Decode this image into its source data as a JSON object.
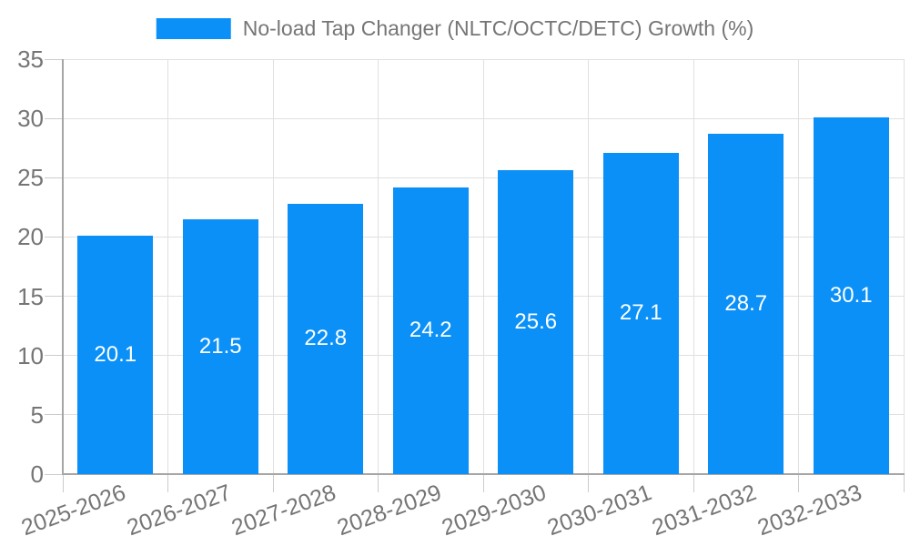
{
  "chart_data": {
    "type": "bar",
    "title": "",
    "legend": "No-load Tap Changer (NLTC/OCTC/DETC) Growth (%)",
    "legend_position": "top-center",
    "categories": [
      "2025-2026",
      "2026-2027",
      "2027-2028",
      "2028-2029",
      "2029-2030",
      "2030-2031",
      "2031-2032",
      "2032-2033"
    ],
    "values": [
      20.1,
      21.5,
      22.8,
      24.2,
      25.6,
      27.1,
      28.7,
      30.1
    ],
    "value_labels": [
      "20.1",
      "21.5",
      "22.8",
      "24.2",
      "25.6",
      "27.1",
      "28.7",
      "30.1"
    ],
    "xlabel": "",
    "ylabel": "",
    "ylim": [
      0,
      35
    ],
    "yticks": [
      0,
      5,
      10,
      15,
      20,
      25,
      30,
      35
    ],
    "grid": true,
    "x_label_rotation_deg": -20,
    "colors": {
      "bar": "#0a90f7",
      "bar_label": "#ffffff",
      "axis_text": "#757575",
      "legend_text": "#757575",
      "gridline": "#e0e0e0",
      "axis_line": "#a6a6a6",
      "tick": "#cccccc",
      "background": "#ffffff"
    }
  }
}
